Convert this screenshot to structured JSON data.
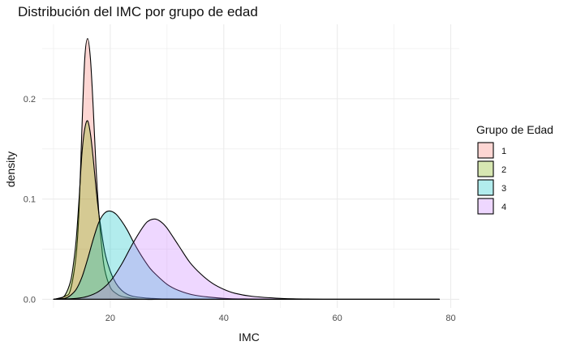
{
  "chart_data": {
    "type": "area",
    "title": "Distribución del IMC por grupo de edad",
    "xlabel": "IMC",
    "ylabel": "density",
    "xlim": [
      8,
      81.5
    ],
    "ylim": [
      -0.0085,
      0.2742
    ],
    "x_ticks": [
      20,
      40,
      60,
      80
    ],
    "x_tick_labels": [
      "20",
      "40",
      "60",
      "80"
    ],
    "y_ticks": [
      0.0,
      0.1,
      0.2
    ],
    "y_tick_labels": [
      "0.0",
      "0.1",
      "0.2"
    ],
    "grid": true,
    "legend": {
      "title": "Grupo de Edad",
      "position": "right"
    },
    "series": [
      {
        "name": "1",
        "color": "#F8766D",
        "x": [
          10,
          12,
          13,
          14,
          14.5,
          15,
          15.5,
          16,
          16.5,
          17,
          17.5,
          18,
          18.5,
          19,
          20,
          21,
          22,
          24,
          26,
          28,
          30,
          35,
          40,
          50,
          60,
          70,
          78
        ],
        "y": [
          0,
          0.003,
          0.01,
          0.045,
          0.09,
          0.17,
          0.24,
          0.26,
          0.24,
          0.19,
          0.13,
          0.085,
          0.052,
          0.03,
          0.012,
          0.006,
          0.003,
          0.001,
          0,
          0,
          0,
          0,
          0,
          0,
          0,
          0,
          0
        ]
      },
      {
        "name": "2",
        "color": "#7CAE00",
        "x": [
          10,
          11,
          12,
          13,
          13.5,
          14,
          14.5,
          15,
          15.5,
          16,
          16.5,
          17,
          17.5,
          18,
          19,
          20,
          21,
          22,
          23,
          24,
          26,
          28,
          30,
          35,
          40,
          50,
          60,
          70,
          78
        ],
        "y": [
          0,
          0.001,
          0.004,
          0.018,
          0.035,
          0.06,
          0.1,
          0.145,
          0.17,
          0.178,
          0.165,
          0.14,
          0.11,
          0.085,
          0.048,
          0.028,
          0.016,
          0.009,
          0.005,
          0.003,
          0.0015,
          0.0008,
          0.0004,
          0.0002,
          0.0001,
          0,
          0,
          0,
          0
        ]
      },
      {
        "name": "3",
        "color": "#00BFC4",
        "x": [
          10,
          12,
          13,
          14,
          15,
          16,
          17,
          18,
          19,
          20,
          21,
          22,
          23,
          24,
          25,
          26,
          27,
          28,
          30,
          32,
          35,
          40,
          45,
          50,
          60,
          70,
          78
        ],
        "y": [
          0,
          0.001,
          0.004,
          0.01,
          0.022,
          0.04,
          0.06,
          0.077,
          0.086,
          0.088,
          0.085,
          0.078,
          0.069,
          0.058,
          0.048,
          0.039,
          0.031,
          0.025,
          0.015,
          0.009,
          0.004,
          0.001,
          0.0003,
          0,
          0,
          0,
          0
        ]
      },
      {
        "name": "4",
        "color": "#C77CFF",
        "x": [
          10,
          14,
          16,
          18,
          20,
          22,
          24,
          26,
          27,
          28,
          29,
          30,
          32,
          34,
          36,
          38,
          40,
          42,
          45,
          50,
          55,
          60,
          70,
          78
        ],
        "y": [
          0,
          0.001,
          0.003,
          0.008,
          0.018,
          0.035,
          0.056,
          0.074,
          0.079,
          0.08,
          0.077,
          0.071,
          0.054,
          0.037,
          0.025,
          0.016,
          0.01,
          0.006,
          0.003,
          0.001,
          0.0003,
          0,
          0,
          0
        ]
      }
    ]
  }
}
